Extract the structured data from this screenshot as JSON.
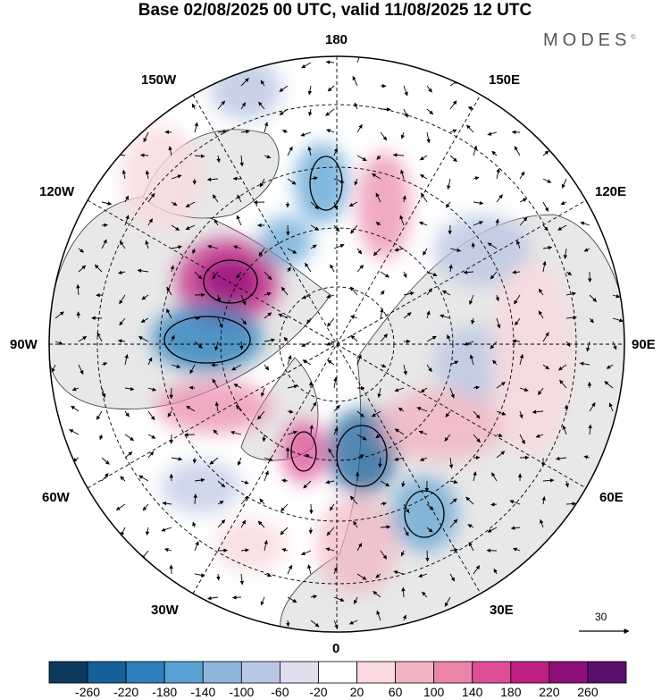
{
  "header": {
    "title": "Base 02/08/2025 00 UTC, valid 11/08/2025 12 UTC",
    "logo_text": "MODES",
    "logo_mark": "©"
  },
  "map": {
    "projection": "north polar stereographic",
    "longitude_labels": {
      "top": "180",
      "bottom": "0",
      "left": "90W",
      "right": "90E",
      "upper_left_1": "150W",
      "upper_left_2": "120W",
      "upper_right_1": "150E",
      "upper_right_2": "120E",
      "lower_left_1": "60W",
      "lower_left_2": "30W",
      "lower_right_1": "60E",
      "lower_right_2": "30E"
    },
    "reference_vector_value": "30"
  },
  "colorbar": {
    "ticks": [
      "-260",
      "-220",
      "-180",
      "-140",
      "-100",
      "-60",
      "-20",
      "20",
      "60",
      "100",
      "140",
      "180",
      "220",
      "260"
    ],
    "colors": [
      "#0b3a5e",
      "#17609a",
      "#2d80bd",
      "#5aa0d2",
      "#8fb5dc",
      "#b9c6e4",
      "#dedeef",
      "#ffffff",
      "#f7d9df",
      "#f2b3c2",
      "#ea85a9",
      "#de4e96",
      "#c01f82",
      "#8e0f78",
      "#5a0e6e"
    ]
  }
}
